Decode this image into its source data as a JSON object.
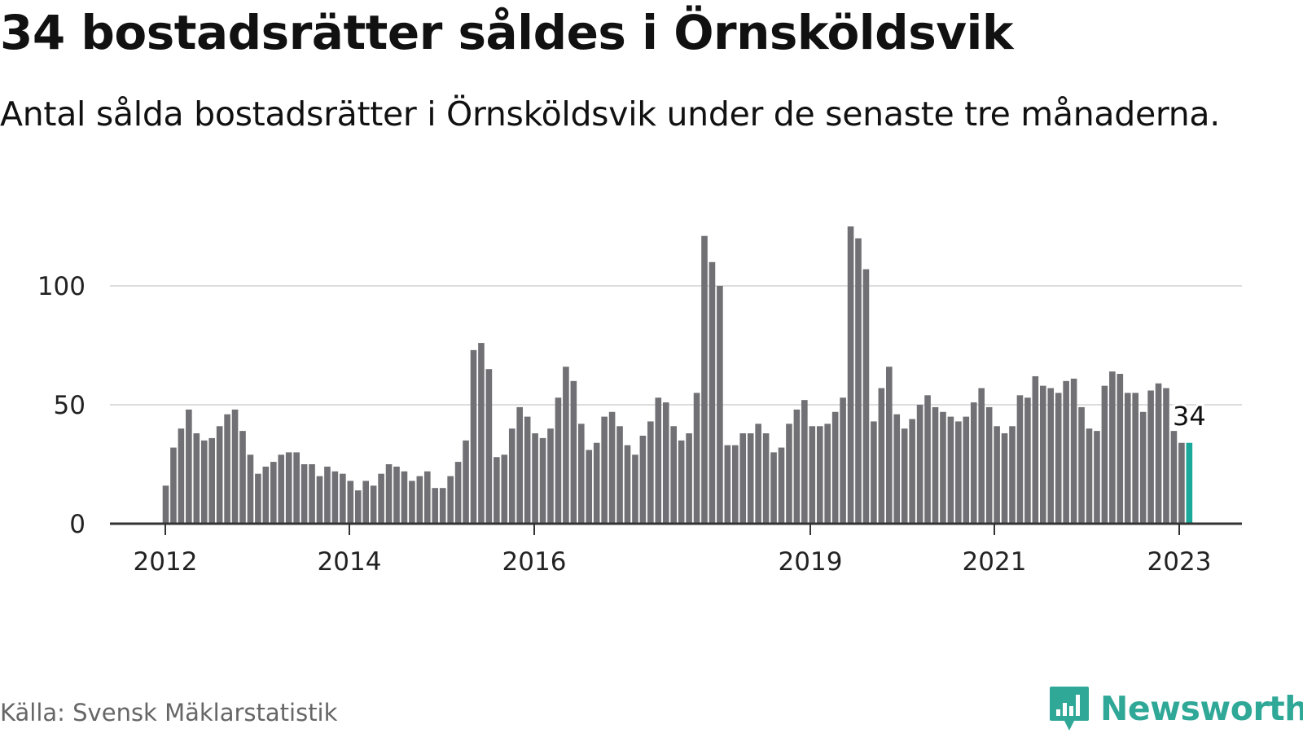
{
  "title": "34 bostadsrätter såldes i Örnsköldsvik",
  "subtitle": "Antal sålda bostadsrätter i Örnsköldsvik under de senaste tre månaderna.",
  "source": "Källa: Svensk Mäklarstatistik",
  "brand": {
    "name": "Newsworthy",
    "icon": "newsworthy-chart-icon",
    "color": "#2fa898"
  },
  "colors": {
    "bar": "#707075",
    "highlight": "#1aa89a",
    "grid": "#dddddd",
    "axis": "#333333"
  },
  "chart_data": {
    "type": "bar",
    "x_label_ticks": [
      "2012",
      "2014",
      "2016",
      "2019",
      "2021",
      "2023"
    ],
    "y_ticks": [
      0,
      50,
      100
    ],
    "ylim": [
      0,
      130
    ],
    "grid": true,
    "highlight_label": "34",
    "series": [
      {
        "values": [
          16,
          32,
          40,
          48,
          38,
          35,
          36,
          41,
          46,
          48,
          39,
          29,
          21,
          24,
          26,
          29,
          30,
          30,
          25,
          25,
          20,
          24,
          22,
          21,
          18,
          14,
          18,
          16,
          21,
          25,
          24,
          22,
          18,
          20,
          22,
          15,
          15,
          20,
          26,
          35,
          73,
          76,
          65,
          28,
          29,
          40,
          49,
          45,
          38,
          36,
          40,
          53,
          66,
          60,
          42,
          31,
          34,
          45,
          47,
          41,
          33,
          29,
          37,
          43,
          53,
          51,
          41,
          35,
          38,
          55,
          121,
          110,
          100,
          33,
          33,
          38,
          38,
          42,
          38,
          30,
          32,
          42,
          48,
          52,
          41,
          41,
          42,
          47,
          53,
          125,
          120,
          107,
          43,
          57,
          66,
          46,
          40,
          44,
          50,
          54,
          49,
          47,
          45,
          43,
          45,
          51,
          57,
          49,
          41,
          38,
          41,
          54,
          53,
          62,
          58,
          57,
          55,
          60,
          61,
          49,
          40,
          39,
          58,
          64,
          63,
          55,
          55,
          47,
          56,
          59,
          57,
          39,
          34,
          34
        ]
      }
    ]
  }
}
